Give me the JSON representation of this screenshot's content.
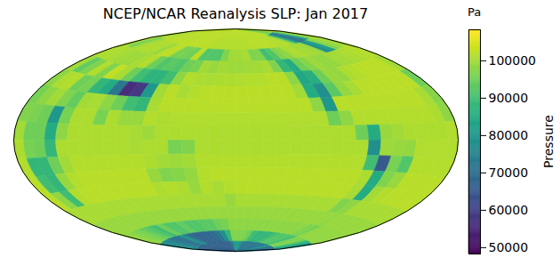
{
  "chart_data": {
    "type": "heatmap",
    "title": "NCEP/NCAR Reanalysis SLP: Jan 2017",
    "color": "viridis",
    "lons": [
      5,
      15,
      25,
      35,
      45,
      55,
      65,
      75,
      85,
      95,
      105,
      115,
      125,
      135,
      145,
      155,
      165,
      175,
      185,
      195,
      205,
      215,
      225,
      235,
      245,
      255,
      265,
      275,
      285,
      295,
      305,
      315,
      325,
      335,
      345,
      355
    ],
    "lats": [
      85,
      75,
      65,
      55,
      45,
      35,
      25,
      15,
      5,
      -5,
      -15,
      -25,
      -35,
      -45,
      -55,
      -65,
      -75,
      -85
    ],
    "values": [
      [
        101800,
        101800,
        101800,
        101800,
        101800,
        101800,
        101800,
        101800,
        101800,
        101800,
        101800,
        101800,
        101800,
        101800,
        101800,
        101800,
        101800,
        101800,
        101800,
        101800,
        101800,
        101800,
        101800,
        101800,
        101800,
        101800,
        101800,
        101800,
        101800,
        101800,
        101800,
        95000,
        95000,
        95000,
        101800,
        101800
      ],
      [
        100500,
        101000,
        101500,
        101800,
        101800,
        101800,
        101800,
        101800,
        102000,
        102000,
        102000,
        102000,
        102000,
        101500,
        101500,
        101500,
        101500,
        101500,
        101500,
        101500,
        101500,
        101800,
        101800,
        101800,
        101800,
        101800,
        101500,
        101500,
        101500,
        98000,
        85000,
        72000,
        72000,
        80000,
        95000,
        100500
      ],
      [
        100500,
        96000,
        100000,
        101000,
        101000,
        101000,
        99000,
        102000,
        102000,
        96000,
        96000,
        95000,
        102000,
        92000,
        92000,
        92000,
        97000,
        100000,
        100000,
        100500,
        97000,
        97000,
        90000,
        92000,
        97000,
        98000,
        100500,
        101000,
        100000,
        100000,
        99000,
        78000,
        82000,
        97000,
        99000,
        100000
      ],
      [
        101000,
        101000,
        100500,
        100000,
        99500,
        99500,
        100500,
        101500,
        95000,
        92000,
        93000,
        92000,
        95000,
        96000,
        100000,
        99000,
        100000,
        99500,
        99500,
        99800,
        100000,
        100500,
        97000,
        88000,
        85000,
        95000,
        97500,
        99500,
        98500,
        98500,
        100000,
        100000,
        100500,
        101000,
        101500,
        101500
      ],
      [
        100000,
        94000,
        97000,
        101500,
        97000,
        102500,
        100500,
        95000,
        90000,
        87000,
        87000,
        90000,
        98000,
        101500,
        101000,
        100500,
        101000,
        101000,
        101200,
        101500,
        101500,
        102000,
        102000,
        98000,
        84000,
        86000,
        95000,
        99000,
        98500,
        101000,
        101500,
        102000,
        102000,
        102000,
        102000,
        100000
      ],
      [
        98000,
        101000,
        101500,
        95000,
        96000,
        88000,
        85000,
        72000,
        56000,
        58000,
        80000,
        100000,
        102000,
        100500,
        101500,
        102000,
        102000,
        102000,
        102000,
        102000,
        102000,
        102000,
        102000,
        100000,
        85000,
        78000,
        93000,
        98500,
        100500,
        101800,
        102000,
        102000,
        102000,
        102000,
        102000,
        95000
      ],
      [
        96000,
        98000,
        100000,
        97000,
        94000,
        100000,
        100500,
        98000,
        95000,
        90000,
        88000,
        100500,
        101800,
        101800,
        101800,
        101800,
        101800,
        101800,
        101800,
        101800,
        101800,
        101800,
        101800,
        101800,
        98000,
        80000,
        101800,
        101800,
        101800,
        101800,
        101800,
        101800,
        101800,
        101800,
        100500,
        97500
      ],
      [
        97000,
        96500,
        95000,
        80000,
        96000,
        101000,
        101000,
        96000,
        101000,
        99000,
        99000,
        101300,
        101000,
        101200,
        101200,
        101200,
        101200,
        101200,
        101200,
        101200,
        101200,
        101200,
        101200,
        101200,
        101200,
        95000,
        98000,
        101300,
        101300,
        101300,
        101300,
        101300,
        101300,
        101300,
        101000,
        98000
      ],
      [
        100000,
        95000,
        95000,
        85000,
        98000,
        101000,
        101000,
        101000,
        101000,
        101000,
        100500,
        99500,
        101000,
        101000,
        101000,
        101000,
        101000,
        101000,
        101000,
        101000,
        101000,
        101000,
        101000,
        101000,
        101000,
        101000,
        101000,
        95000,
        85000,
        99000,
        100000,
        101000,
        101000,
        101000,
        101000,
        101200
      ],
      [
        101000,
        96000,
        95000,
        88000,
        101000,
        101000,
        101000,
        101000,
        101000,
        101000,
        100500,
        100800,
        100800,
        96000,
        97000,
        101000,
        101000,
        101000,
        101000,
        101000,
        101000,
        101000,
        101000,
        101000,
        101000,
        101000,
        101000,
        101000,
        78000,
        99500,
        99000,
        98500,
        101200,
        101200,
        101200,
        101200
      ],
      [
        101300,
        88000,
        88000,
        95000,
        100000,
        101300,
        101300,
        101300,
        101300,
        101300,
        101300,
        101000,
        100000,
        99500,
        100000,
        101300,
        101300,
        101300,
        101300,
        101300,
        101300,
        101300,
        101300,
        101300,
        101300,
        101300,
        101300,
        101300,
        90000,
        65000,
        96000,
        92000,
        101300,
        101300,
        101300,
        101300
      ],
      [
        101800,
        90000,
        88000,
        99000,
        101500,
        101800,
        101800,
        101800,
        101800,
        101800,
        101800,
        99000,
        97000,
        97500,
        98500,
        101500,
        101800,
        101800,
        101800,
        101800,
        101800,
        101800,
        101800,
        101800,
        101800,
        101800,
        101800,
        101800,
        101000,
        85000,
        97000,
        99000,
        101800,
        101800,
        101800,
        101800
      ],
      [
        101800,
        98000,
        90000,
        101500,
        101800,
        101800,
        101800,
        101800,
        101800,
        101800,
        101800,
        101000,
        101500,
        101000,
        99000,
        101500,
        100500,
        101500,
        101800,
        101800,
        101800,
        101800,
        101800,
        101800,
        101800,
        101800,
        101800,
        101800,
        100500,
        85000,
        100000,
        101500,
        101800,
        101800,
        101800,
        101800
      ],
      [
        100500,
        100500,
        100500,
        100500,
        100500,
        100500,
        100500,
        100500,
        100500,
        100500,
        100500,
        100500,
        100500,
        100500,
        100500,
        100500,
        100500,
        99000,
        100500,
        100500,
        100500,
        100500,
        100500,
        100500,
        100500,
        100500,
        100500,
        100500,
        97000,
        98000,
        100500,
        100500,
        100500,
        100500,
        100500,
        100500
      ],
      [
        99000,
        99000,
        99000,
        99000,
        99000,
        99000,
        99000,
        99000,
        99000,
        99000,
        99000,
        99000,
        99000,
        99000,
        99000,
        99000,
        99000,
        99000,
        99000,
        99000,
        99000,
        99000,
        99000,
        99000,
        99000,
        99000,
        99000,
        99000,
        99000,
        98500,
        99000,
        99000,
        99000,
        99000,
        99000,
        99000
      ],
      [
        98500,
        98000,
        97000,
        96000,
        94000,
        92000,
        90000,
        95000,
        92000,
        92000,
        94000,
        92000,
        92000,
        93000,
        93000,
        95000,
        96000,
        98000,
        98000,
        98000,
        98000,
        98000,
        98000,
        98000,
        98000,
        98000,
        98000,
        98000,
        97000,
        96000,
        98500,
        98500,
        98500,
        98500,
        98500,
        98500
      ],
      [
        80000,
        78000,
        76000,
        74000,
        72000,
        70000,
        72000,
        80000,
        72000,
        68000,
        67000,
        68000,
        68000,
        69000,
        72000,
        78000,
        88000,
        97000,
        97000,
        97000,
        95000,
        90000,
        88000,
        88000,
        88000,
        90000,
        92000,
        92000,
        92000,
        90000,
        96000,
        97000,
        96000,
        90000,
        85000,
        82000
      ],
      [
        67000,
        67000,
        67000,
        67000,
        67000,
        67000,
        67000,
        67000,
        67000,
        67000,
        67000,
        67000,
        67000,
        67000,
        67000,
        67000,
        72000,
        80000,
        82000,
        80000,
        75000,
        72000,
        72000,
        72000,
        72000,
        72000,
        72000,
        72000,
        72000,
        72000,
        80000,
        78000,
        70000,
        70000,
        70000,
        70000
      ]
    ],
    "colorbar": {
      "label": "Pressure",
      "unit": "Pa",
      "range": [
        48300,
        108300
      ],
      "ticks": [
        50000,
        60000,
        70000,
        80000,
        90000,
        100000
      ]
    }
  }
}
